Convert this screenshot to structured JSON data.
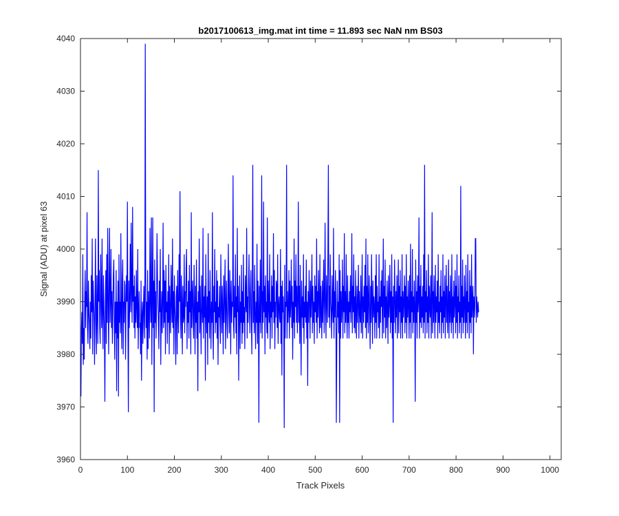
{
  "chart_data": {
    "type": "line",
    "title": "b2017100613_img.mat int time = 11.893 sec  NaN nm BS03",
    "xlabel": "Track Pixels",
    "ylabel": "Signal (ADU) at pixel 63",
    "xlim": [
      0,
      1024
    ],
    "ylim": [
      3960,
      4040
    ],
    "xticks": [
      0,
      100,
      200,
      300,
      400,
      500,
      600,
      700,
      800,
      900,
      1000
    ],
    "yticks": [
      3960,
      3970,
      3980,
      3990,
      4000,
      4010,
      4020,
      4030,
      4040
    ],
    "grid": false,
    "line_color": "#0000ff",
    "series": [
      {
        "x_start": 1,
        "x_step": 1,
        "values": [
          3972,
          3985,
          3988,
          3982,
          3999,
          3978,
          3985,
          3979,
          3990,
          3996,
          3985,
          3992,
          3989,
          4007,
          3985,
          3982,
          3994,
          3988,
          3986,
          3981,
          3990,
          3983,
          3995,
          3988,
          4002,
          3980,
          3994,
          3990,
          3987,
          3978,
          3990,
          4002,
          3986,
          3980,
          3995,
          3988,
          3982,
          4015,
          3990,
          3996,
          3985,
          3982,
          3999,
          3992,
          3985,
          4002,
          3988,
          3981,
          3995,
          3989,
          3984,
          3971,
          3990,
          3996,
          3982,
          3999,
          3986,
          4004,
          3991,
          3980,
          3994,
          4004,
          3986,
          3990,
          4000,
          3985,
          3992,
          3982,
          3989,
          3995,
          3998,
          3986,
          3979,
          3990,
          3984,
          3996,
          3973,
          3990,
          3983,
          3994,
          3972,
          3999,
          3986,
          3990,
          3984,
          4003,
          3988,
          3981,
          3994,
          3998,
          3980,
          3990,
          3986,
          3994,
          3993,
          3979,
          3989,
          3995,
          3990,
          4009,
          3986,
          3969,
          3994,
          3985,
          3990,
          4001,
          3988,
          4005,
          3992,
          3986,
          4008,
          3990,
          3993,
          3985,
          3995,
          3983,
          3991,
          3986,
          3996,
          3989,
          3985,
          4000,
          3981,
          3988,
          3992,
          3985,
          3986,
          3980,
          3994,
          3975,
          3987,
          3990,
          3982,
          3988,
          3993,
          3986,
          3983,
          4039,
          3994,
          3985,
          3990,
          3979,
          3996,
          3981,
          3992,
          3988,
          3983,
          4004,
          3990,
          3986,
          4006,
          3978,
          3990,
          4006,
          3985,
          3994,
          3969,
          3998,
          3986,
          3992,
          3983,
          3989,
          4003,
          3995,
          3990,
          3986,
          3981,
          3994,
          3988,
          4000,
          3978,
          3987,
          3992,
          3984,
          3990,
          4005,
          3985,
          3996,
          3986,
          3994,
          3980,
          3997,
          3988,
          3990,
          3982,
          3992,
          3986,
          3999,
          3980,
          3993,
          3988,
          3984,
          3997,
          3990,
          3986,
          4002,
          3985,
          3992,
          3980,
          3995,
          3989,
          3986,
          3978,
          3991,
          3993,
          3980,
          3996,
          3988,
          3984,
          3999,
          3990,
          4011,
          3987,
          3983,
          3995,
          3989,
          3980,
          3993,
          3986,
          3987,
          3999,
          3984,
          3992,
          3989,
          3996,
          4000,
          3981,
          3990,
          3986,
          3994,
          3983,
          3997,
          3988,
          3992,
          3980,
          4007,
          3985,
          3990,
          3994,
          3986,
          3983,
          3997,
          3989,
          3980,
          3993,
          3986,
          3998,
          3983,
          3990,
          3973,
          3992,
          3988,
          4002,
          3984,
          3993,
          3987,
          3980,
          3995,
          3989,
          3986,
          4004,
          3983,
          3991,
          3987,
          3993,
          3975,
          3999,
          3988,
          3984,
          3991,
          3978,
          4003,
          3986,
          3992,
          3983,
          3996,
          3989,
          3981,
          3990,
          3986,
          4007,
          3985,
          3979,
          3993,
          3988,
          4000,
          3984,
          3990,
          3986,
          3996,
          3983,
          3994,
          3978,
          3989,
          3987,
          3993,
          3986,
          3982,
          3999,
          3990,
          3984,
          3993,
          3988,
          3980,
          3995,
          3986,
          3991,
          3998,
          3981,
          3989,
          3994,
          3986,
          3983,
          3992,
          4001,
          3988,
          3984,
          3996,
          3991,
          3980,
          3994,
          3986,
          3990,
          3989,
          4014,
          3986,
          3983,
          3993,
          3987,
          3999,
          3984,
          3991,
          3980,
          4004,
          3988,
          3993,
          3975,
          3988,
          3995,
          3981,
          3990,
          3986,
          3997,
          3982,
          3992,
          3984,
          3999,
          3986,
          3989,
          3981,
          3995,
          3990,
          3988,
          4004,
          3983,
          3991,
          3986,
          3993,
          3999,
          3988,
          3984,
          3992,
          3996,
          3987,
          3980,
          3993,
          4016,
          3986,
          3992,
          3984,
          3997,
          3988,
          3981,
          3990,
          3986,
          4001,
          3982,
          3994,
          3989,
          3967,
          3993,
          3986,
          3998,
          3984,
          3990,
          4014,
          3983,
          3992,
          3986,
          4009,
          3988,
          3993,
          3980,
          3995,
          3987,
          3990,
          3984,
          4006,
          3983,
          3994,
          3989,
          3986,
          3999,
          3981,
          3990,
          3987,
          3995,
          3983,
          3993,
          3988,
          4003,
          3986,
          3996,
          3981,
          3990,
          3987,
          3994,
          3993,
          3985,
          3999,
          3982,
          3989,
          3991,
          3987,
          3986,
          4000,
          3982,
          3993,
          3976,
          3994,
          3988,
          3991,
          3986,
          3966,
          3997,
          3983,
          3990,
          3989,
          4016,
          3983,
          3992,
          3986,
          3989,
          3996,
          3983,
          3994,
          3987,
          3990,
          3998,
          3985,
          3993,
          3979,
          3990,
          3986,
          4002,
          3983,
          3994,
          3989,
          3999,
          3986,
          3993,
          3984,
          3990,
          4009,
          3986,
          3993,
          3982,
          3997,
          3988,
          3976,
          3994,
          3987,
          3991,
          3985,
          3999,
          3982,
          3990,
          3987,
          3993,
          3986,
          3998,
          3983,
          3990,
          3974,
          3992,
          3986,
          3996,
          3990,
          3983,
          3994,
          3987,
          3991,
          3999,
          3984,
          3993,
          3986,
          3990,
          3982,
          3995,
          3988,
          3993,
          3986,
          4002,
          3983,
          3992,
          3987,
          3996,
          3990,
          3984,
          3999,
          3985,
          3993,
          3988,
          3983,
          3994,
          3986,
          3991,
          3998,
          3984,
          3990,
          4005,
          3988,
          3983,
          3995,
          3990,
          3986,
          3999,
          4016,
          3987,
          3993,
          3985,
          3999,
          3990,
          3988,
          3983,
          3995,
          3989,
          3986,
          4004,
          3983,
          3992,
          3987,
          3996,
          3990,
          3967,
          3983,
          3994,
          3987,
          3990,
          3984,
          3999,
          3967,
          3996,
          3983,
          3992,
          3986,
          3989,
          3998,
          3983,
          3993,
          3988,
          4003,
          3984,
          3992,
          3986,
          3999,
          3988,
          3983,
          3995,
          3986,
          3990,
          3983,
          3992,
          3988,
          3995,
          3986,
          3990,
          4003,
          3984,
          3993,
          3988,
          3999,
          3985,
          3991,
          3984,
          3996,
          3988,
          3983,
          3993,
          3986,
          3990,
          3997,
          3983,
          3992,
          3988,
          3986,
          3995,
          3984,
          3990,
          3999,
          3983,
          3991,
          3986,
          3993,
          3988,
          3997,
          3985,
          4002,
          3983,
          3993,
          3986,
          3999,
          3984,
          3990,
          3995,
          3987,
          3981,
          3993,
          3986,
          3999,
          3990,
          3982,
          3994,
          3987,
          3991,
          3989,
          3983,
          3995,
          3986,
          3999,
          3983,
          3993,
          3988,
          3990,
          3985,
          3999,
          3983,
          3991,
          3986,
          3994,
          3989,
          3996,
          3983,
          3990,
          4002,
          3984,
          3993,
          3987,
          3998,
          3983,
          3991,
          3985,
          3994,
          3989,
          3982,
          3995,
          3987,
          3990,
          3997,
          3984,
          3992,
          3986,
          3999,
          3983,
          3991,
          3967,
          3993,
          3986,
          3998,
          3990,
          3984,
          3992,
          3987,
          3995,
          3983,
          3990,
          3998,
          3984,
          3993,
          3988,
          3996,
          3983,
          3991,
          3986,
          3999,
          3983,
          3992,
          3987,
          3990,
          3995,
          3984,
          3993,
          3986,
          3999,
          3983,
          3991,
          3987,
          3994,
          3989,
          3983,
          3995,
          3986,
          4001,
          3983,
          3992,
          3988,
          4000,
          3984,
          3991,
          3986,
          3994,
          3989,
          3971,
          3998,
          3986,
          3992,
          3983,
          3995,
          3988,
          3990,
          4006,
          3983,
          3993,
          3986,
          3997,
          3985,
          3991,
          3987,
          3993,
          3984,
          3999,
          3986,
          4016,
          3983,
          3992,
          3988,
          3996,
          3984,
          3991,
          3986,
          3999,
          3983,
          3993,
          3989,
          3987,
          3995,
          3983,
          3990,
          4007,
          3984,
          3992,
          3986,
          3995,
          3989,
          3983,
          3997,
          3986,
          3991,
          3988,
          3994,
          3983,
          3999,
          3986,
          3990,
          3984,
          3993,
          3988,
          3996,
          3983,
          3991,
          3986,
          3999,
          3984,
          3992,
          3987,
          3995,
          3983,
          3990,
          3997,
          3986,
          3993,
          3984,
          3989,
          3998,
          3983,
          3992,
          3986,
          3995,
          3988,
          3984,
          3999,
          3986,
          3991,
          3983,
          3994,
          3987,
          3990,
          3996,
          3984,
          3993,
          3986,
          3999,
          3983,
          3991,
          3988,
          3995,
          3984,
          3990,
          3986,
          4012,
          3983,
          3993,
          3987,
          3998,
          3984,
          3991,
          3986,
          3995,
          3989,
          3983,
          3997,
          3986,
          3992,
          3984,
          3999,
          3988,
          3990,
          3983,
          3996,
          3986,
          3993,
          3984,
          3999,
          3987,
          3990,
          3993,
          3980,
          3991,
          3987,
          3989,
          4002,
          4002,
          3986,
          3991,
          3989,
          3987,
          3990,
          3988
        ]
      }
    ]
  }
}
